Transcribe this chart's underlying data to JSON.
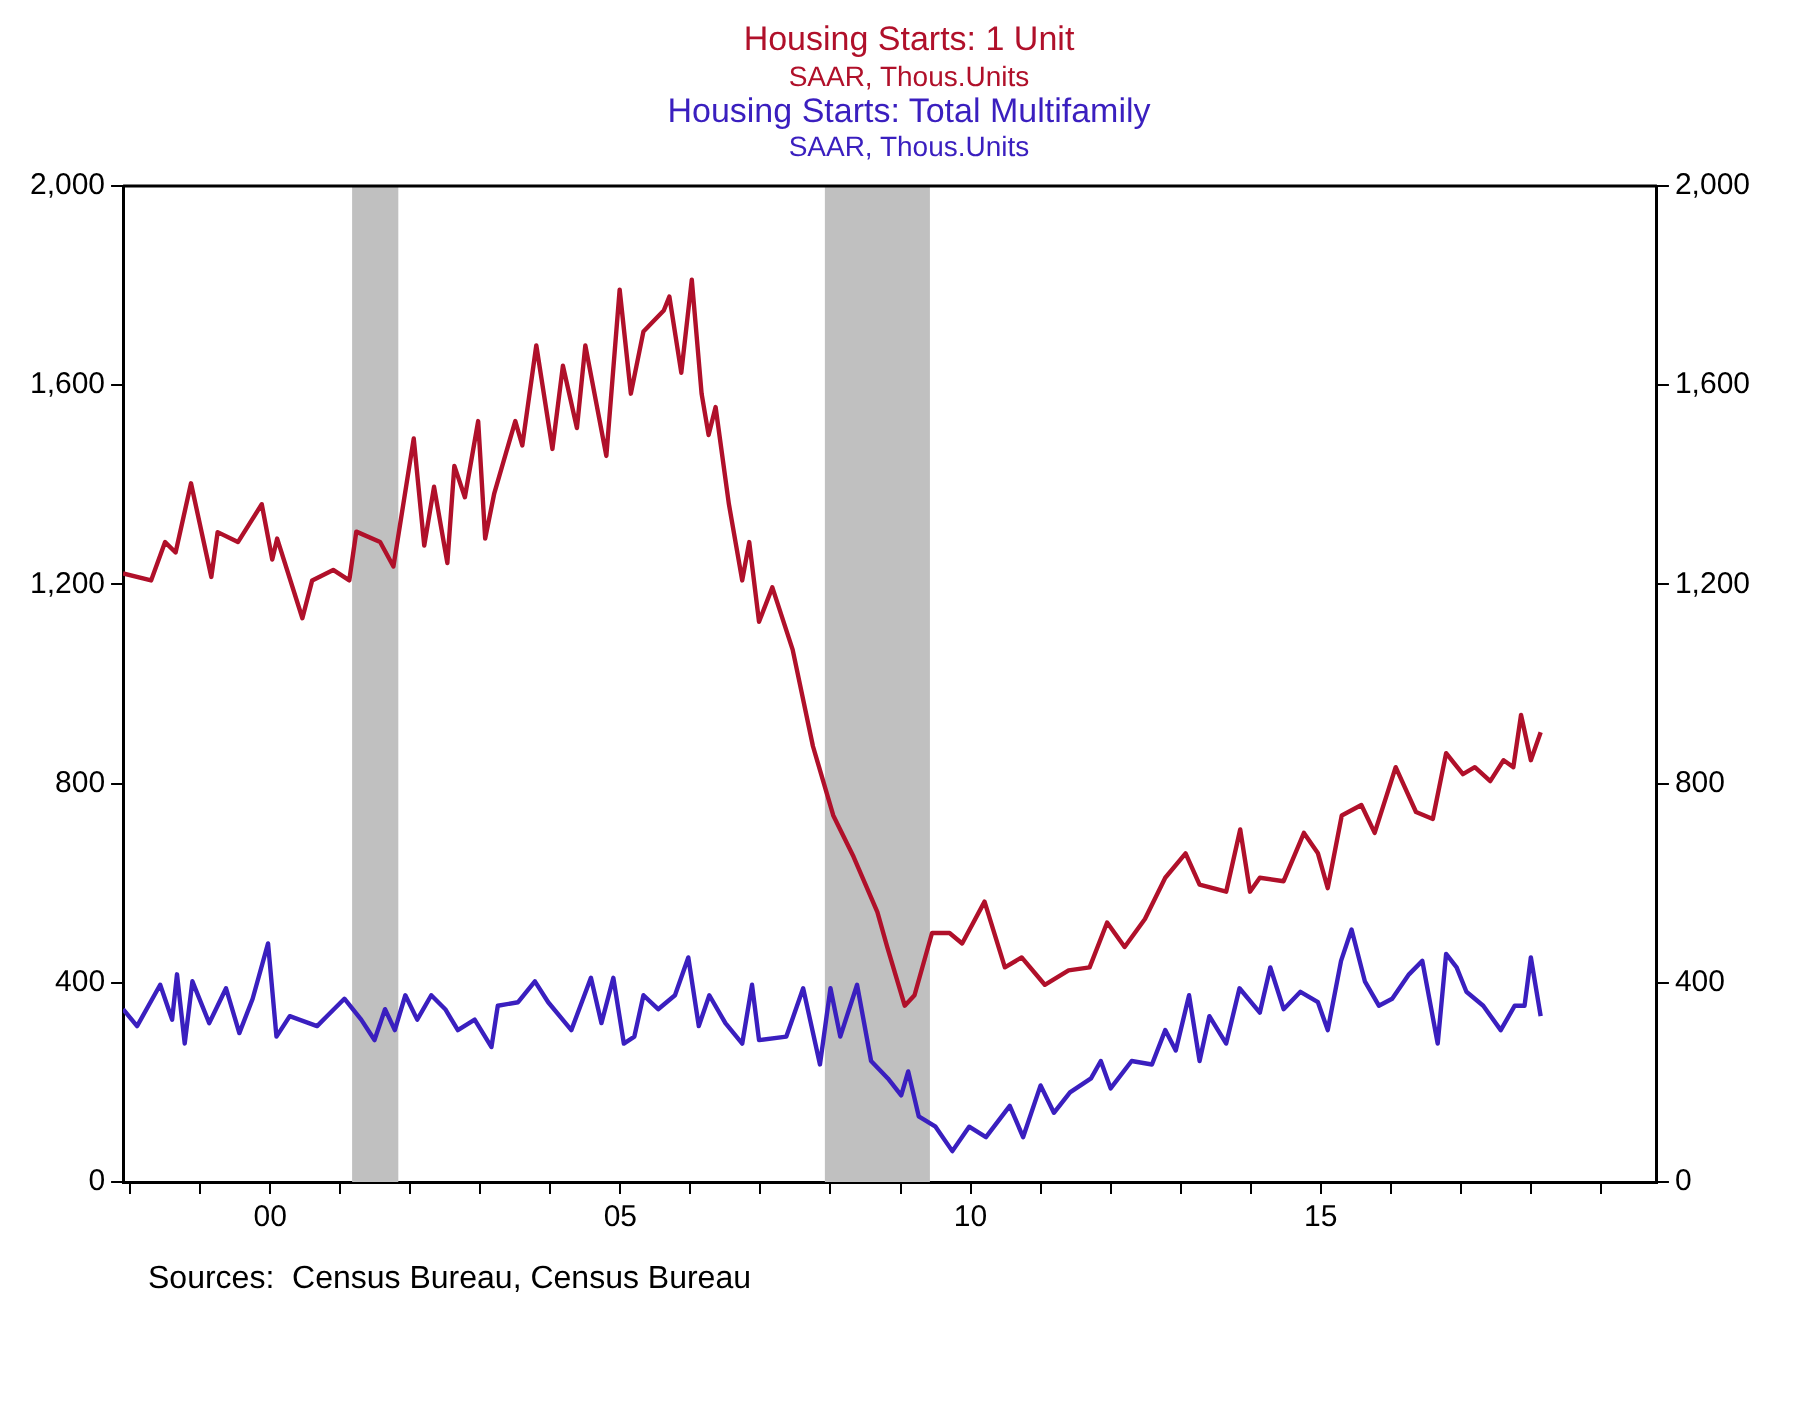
{
  "chart_data": {
    "type": "line",
    "annotations": [
      "Sources:  Census Bureau, Census Bureau"
    ],
    "xlim": [
      1997.9,
      2019.8
    ],
    "xticks": [
      {
        "value": 1998,
        "label": null
      },
      {
        "value": 1999,
        "label": null
      },
      {
        "value": 2000,
        "label": "00"
      },
      {
        "value": 2001,
        "label": null
      },
      {
        "value": 2002,
        "label": null
      },
      {
        "value": 2003,
        "label": null
      },
      {
        "value": 2004,
        "label": null
      },
      {
        "value": 2005,
        "label": "05"
      },
      {
        "value": 2006,
        "label": null
      },
      {
        "value": 2007,
        "label": null
      },
      {
        "value": 2008,
        "label": null
      },
      {
        "value": 2009,
        "label": null
      },
      {
        "value": 2010,
        "label": "10"
      },
      {
        "value": 2011,
        "label": null
      },
      {
        "value": 2012,
        "label": null
      },
      {
        "value": 2013,
        "label": null
      },
      {
        "value": 2014,
        "label": null
      },
      {
        "value": 2015,
        "label": "15"
      },
      {
        "value": 2016,
        "label": null
      },
      {
        "value": 2017,
        "label": null
      },
      {
        "value": 2018,
        "label": null
      },
      {
        "value": 2019,
        "label": null
      }
    ],
    "ylim": [
      0,
      2000
    ],
    "yticks": [
      0,
      400,
      800,
      {
        "value": 1200,
        "label": "1,200"
      },
      {
        "value": 1600,
        "label": "1,600"
      },
      {
        "value": 2000,
        "label": "2,000"
      }
    ],
    "y2lim": [
      0,
      2000
    ],
    "y2ticks": [
      0,
      400,
      800,
      {
        "value": 1200,
        "label": "1,200"
      },
      {
        "value": 1600,
        "label": "1,600"
      },
      {
        "value": 2000,
        "label": "2,000"
      }
    ],
    "grid": false,
    "legend": "top",
    "line_style": "solid",
    "marker": "none",
    "bands": [
      {
        "axis": "x",
        "from": 2001.17,
        "to": 2001.83,
        "label": null,
        "color": "#c0c0c0"
      },
      {
        "axis": "x",
        "from": 2007.92,
        "to": 2009.42,
        "label": null,
        "color": "#c0c0c0"
      }
    ],
    "series": [
      {
        "name": "Housing Starts: 1 Unit\nSAAR, Thous.Units",
        "color": "#b0102a",
        "x": [
          1997.9,
          1998.3,
          1998.5,
          1998.65,
          1998.87,
          1999.16,
          1999.25,
          1999.54,
          1999.88,
          2000.03,
          2000.1,
          2000.46,
          2000.6,
          2000.9,
          2001.13,
          2001.23,
          2001.57,
          2001.76,
          2002.05,
          2002.2,
          2002.34,
          2002.53,
          2002.63,
          2002.78,
          2002.97,
          2003.07,
          2003.2,
          2003.5,
          2003.6,
          2003.8,
          2004.03,
          2004.18,
          2004.38,
          2004.5,
          2004.8,
          2004.99,
          2005.15,
          2005.33,
          2005.62,
          2005.7,
          2005.87,
          2006.02,
          2006.16,
          2006.26,
          2006.36,
          2006.55,
          2006.74,
          2006.84,
          2006.98,
          2007.17,
          2007.46,
          2007.75,
          2008.04,
          2008.33,
          2008.67,
          2008.81,
          2009.06,
          2009.2,
          2009.45,
          2009.7,
          2009.88,
          2010.2,
          2010.49,
          2010.73,
          2011.06,
          2011.4,
          2011.7,
          2011.95,
          2012.2,
          2012.49,
          2012.78,
          2013.07,
          2013.27,
          2013.65,
          2013.85,
          2013.99,
          2014.13,
          2014.47,
          2014.76,
          2014.96,
          2015.1,
          2015.3,
          2015.58,
          2015.77,
          2016.07,
          2016.36,
          2016.6,
          2016.79,
          2017.03,
          2017.2,
          2017.42,
          2017.61,
          2017.75,
          2017.86,
          2018.0,
          2018.14
        ],
        "values": [
          1222,
          1208,
          1285,
          1264,
          1403,
          1215,
          1305,
          1285,
          1361,
          1250,
          1292,
          1132,
          1208,
          1229,
          1208,
          1306,
          1285,
          1236,
          1493,
          1278,
          1396,
          1243,
          1438,
          1375,
          1528,
          1292,
          1383,
          1528,
          1479,
          1680,
          1472,
          1639,
          1514,
          1680,
          1458,
          1792,
          1583,
          1708,
          1750,
          1778,
          1625,
          1812,
          1583,
          1500,
          1556,
          1361,
          1208,
          1285,
          1125,
          1194,
          1069,
          875,
          736,
          653,
          542,
          472,
          354,
          375,
          500,
          500,
          479,
          563,
          431,
          451,
          396,
          425,
          431,
          521,
          472,
          528,
          611,
          660,
          597,
          583,
          708,
          583,
          611,
          604,
          701,
          660,
          590,
          736,
          757,
          701,
          833,
          743,
          729,
          861,
          819,
          833,
          805,
          847,
          833,
          938,
          847,
          903
        ]
      },
      {
        "name": "Housing Starts: Total Multifamily\nSAAR, Thous.Units",
        "color": "#3a1fbf",
        "x": [
          1997.9,
          1998.1,
          1998.43,
          1998.6,
          1998.67,
          1998.78,
          1998.89,
          1999.13,
          1999.37,
          1999.56,
          1999.75,
          1999.97,
          2000.09,
          2000.28,
          2000.67,
          2000.86,
          2001.06,
          2001.3,
          2001.49,
          2001.64,
          2001.78,
          2001.93,
          2002.1,
          2002.3,
          2002.5,
          2002.68,
          2002.92,
          2003.16,
          2003.25,
          2003.54,
          2003.78,
          2003.97,
          2004.3,
          2004.58,
          2004.73,
          2004.9,
          2005.05,
          2005.2,
          2005.33,
          2005.54,
          2005.78,
          2005.97,
          2006.12,
          2006.27,
          2006.5,
          2006.74,
          2006.88,
          2006.98,
          2007.37,
          2007.61,
          2007.85,
          2008.0,
          2008.14,
          2008.38,
          2008.58,
          2008.82,
          2009.01,
          2009.11,
          2009.26,
          2009.5,
          2009.74,
          2009.98,
          2010.22,
          2010.56,
          2010.75,
          2011.0,
          2011.19,
          2011.42,
          2011.72,
          2011.86,
          2012.0,
          2012.3,
          2012.59,
          2012.78,
          2012.93,
          2013.12,
          2013.27,
          2013.41,
          2013.65,
          2013.84,
          2014.13,
          2014.28,
          2014.47,
          2014.71,
          2014.96,
          2015.1,
          2015.29,
          2015.44,
          2015.63,
          2015.83,
          2016.02,
          2016.26,
          2016.45,
          2016.67,
          2016.79,
          2016.94,
          2017.08,
          2017.32,
          2017.57,
          2017.77,
          2017.91,
          2018.0,
          2018.14
        ],
        "values": [
          347,
          313,
          396,
          326,
          417,
          278,
          403,
          319,
          389,
          299,
          368,
          479,
          292,
          333,
          313,
          340,
          368,
          326,
          285,
          347,
          305,
          375,
          326,
          375,
          347,
          305,
          326,
          271,
          354,
          361,
          403,
          361,
          305,
          410,
          319,
          410,
          278,
          292,
          375,
          347,
          375,
          451,
          313,
          375,
          319,
          278,
          396,
          285,
          292,
          389,
          236,
          389,
          292,
          396,
          243,
          208,
          174,
          222,
          132,
          111,
          62,
          111,
          90,
          153,
          90,
          194,
          139,
          180,
          208,
          243,
          188,
          243,
          236,
          305,
          264,
          375,
          243,
          333,
          278,
          389,
          340,
          431,
          347,
          382,
          361,
          305,
          444,
          507,
          403,
          354,
          368,
          417,
          444,
          278,
          458,
          431,
          382,
          354,
          305,
          354,
          354,
          451,
          333
        ]
      }
    ]
  }
}
